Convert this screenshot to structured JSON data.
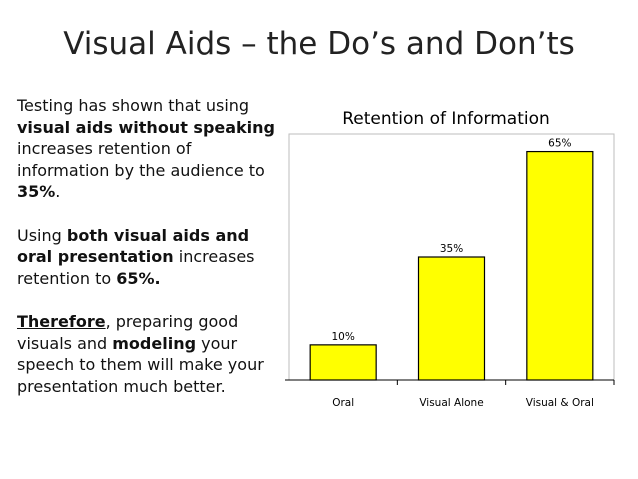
{
  "slide": {
    "title": "Visual Aids – the Do’s and Don’ts"
  },
  "text": {
    "p1_a": "Testing has shown that using ",
    "p1_b": "visual aids without speaking",
    "p1_c": " increases retention of information by the audience to ",
    "p1_d": "35%",
    "p1_e": ".",
    "p2_a": "Using ",
    "p2_b": "both visual aids and oral presentation",
    "p2_c": " increases retention to ",
    "p2_d": "65%.",
    "p3_a": "Therefore",
    "p3_b": ", preparing good visuals and ",
    "p3_c": "modeling",
    "p3_d": " your speech to them will make your presentation much better."
  },
  "chart_data": {
    "type": "bar",
    "title": "Retention of Information",
    "categories": [
      "Oral",
      "Visual Alone",
      "Visual & Oral"
    ],
    "values": [
      10,
      35,
      65
    ],
    "data_labels": [
      "10%",
      "35%",
      "65%"
    ],
    "ylim": [
      0,
      70
    ],
    "xlabel": "",
    "ylabel": "",
    "colors": {
      "bar": "#ffff00",
      "outline": "#000000"
    }
  }
}
